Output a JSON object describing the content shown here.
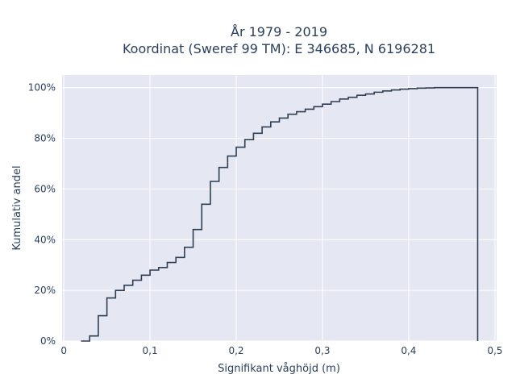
{
  "chart_data": {
    "type": "line",
    "title_line1": "År 1979 - 2019",
    "title_line2": "Koordinat (Sweref 99 TM): E 346685, N 6196281",
    "xlabel": "Signifikant våghöjd (m)",
    "ylabel": "Kumulativ andel",
    "xlim": [
      -0.002,
      0.502
    ],
    "ylim": [
      0,
      1.05
    ],
    "x_ticks": [
      {
        "value": 0,
        "label": "0"
      },
      {
        "value": 0.1,
        "label": "0,1"
      },
      {
        "value": 0.2,
        "label": "0,2"
      },
      {
        "value": 0.3,
        "label": "0,3"
      },
      {
        "value": 0.4,
        "label": "0,4"
      },
      {
        "value": 0.5,
        "label": "0,5"
      }
    ],
    "y_ticks": [
      {
        "value": 0,
        "label": "0%"
      },
      {
        "value": 0.2,
        "label": "20%"
      },
      {
        "value": 0.4,
        "label": "40%"
      },
      {
        "value": 0.6,
        "label": "60%"
      },
      {
        "value": 0.8,
        "label": "80%"
      },
      {
        "value": 1.0,
        "label": "100%"
      }
    ],
    "grid": true,
    "line_color": "#2f3e52",
    "plot_bg": "#e5e8f2",
    "series": [
      {
        "step": "after",
        "x": [
          0.02,
          0.03,
          0.04,
          0.05,
          0.06,
          0.07,
          0.08,
          0.09,
          0.1,
          0.11,
          0.12,
          0.13,
          0.14,
          0.15,
          0.16,
          0.17,
          0.18,
          0.19,
          0.2,
          0.21,
          0.22,
          0.23,
          0.24,
          0.25,
          0.26,
          0.27,
          0.28,
          0.29,
          0.3,
          0.31,
          0.32,
          0.33,
          0.34,
          0.35,
          0.36,
          0.37,
          0.38,
          0.39,
          0.4,
          0.41,
          0.42,
          0.43,
          0.44,
          0.45,
          0.46,
          0.47,
          0.48
        ],
        "y": [
          0.0,
          0.02,
          0.1,
          0.17,
          0.2,
          0.22,
          0.24,
          0.26,
          0.28,
          0.29,
          0.31,
          0.33,
          0.37,
          0.44,
          0.54,
          0.63,
          0.685,
          0.73,
          0.765,
          0.795,
          0.82,
          0.845,
          0.865,
          0.88,
          0.895,
          0.905,
          0.915,
          0.925,
          0.935,
          0.945,
          0.955,
          0.962,
          0.97,
          0.975,
          0.982,
          0.987,
          0.991,
          0.994,
          0.996,
          0.998,
          0.999,
          1.0,
          1.0,
          1.0,
          1.0,
          1.0,
          0.0
        ]
      }
    ]
  }
}
